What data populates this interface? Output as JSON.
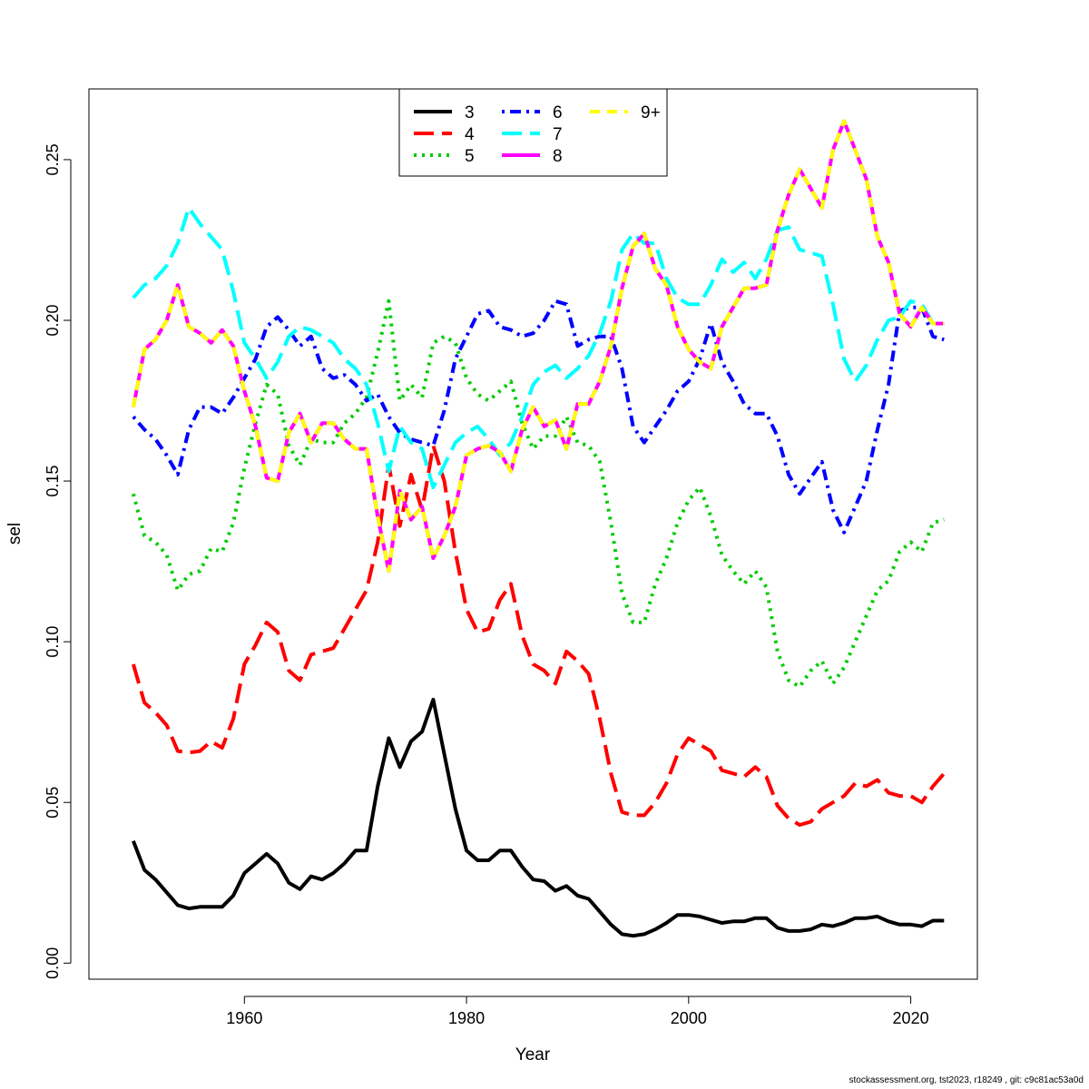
{
  "chart_data": {
    "type": "line",
    "xlabel": "Year",
    "ylabel": "sel",
    "xlim": [
      1946,
      2026
    ],
    "ylim": [
      -0.005,
      0.272
    ],
    "x_ticks": [
      1960,
      1980,
      2000,
      2020
    ],
    "y_ticks": [
      0.0,
      0.05,
      0.1,
      0.15,
      0.2,
      0.25
    ],
    "y_tick_labels": [
      "0.00",
      "0.05",
      "0.10",
      "0.15",
      "0.20",
      "0.25"
    ],
    "grid": false,
    "legend_position": "top-center",
    "x": [
      1950,
      1951,
      1952,
      1953,
      1954,
      1955,
      1956,
      1957,
      1958,
      1959,
      1960,
      1961,
      1962,
      1963,
      1964,
      1965,
      1966,
      1967,
      1968,
      1969,
      1970,
      1971,
      1972,
      1973,
      1974,
      1975,
      1976,
      1977,
      1978,
      1979,
      1980,
      1981,
      1982,
      1983,
      1984,
      1985,
      1986,
      1987,
      1988,
      1989,
      1990,
      1991,
      1992,
      1993,
      1994,
      1995,
      1996,
      1997,
      1998,
      1999,
      2000,
      2001,
      2002,
      2003,
      2004,
      2005,
      2006,
      2007,
      2008,
      2009,
      2010,
      2011,
      2012,
      2013,
      2014,
      2015,
      2016,
      2017,
      2018,
      2019,
      2020,
      2021,
      2022,
      2023
    ],
    "series": [
      {
        "name": "3",
        "color": "#000000",
        "dash": "solid",
        "values": [
          0.038,
          0.029,
          0.026,
          0.022,
          0.018,
          0.017,
          0.0175,
          0.0175,
          0.0175,
          0.021,
          0.028,
          0.031,
          0.034,
          0.031,
          0.025,
          0.023,
          0.027,
          0.026,
          0.028,
          0.031,
          0.035,
          0.035,
          0.055,
          0.07,
          0.061,
          0.069,
          0.072,
          0.082,
          0.065,
          0.048,
          0.035,
          0.032,
          0.032,
          0.035,
          0.035,
          0.03,
          0.026,
          0.0255,
          0.0225,
          0.024,
          0.021,
          0.02,
          0.016,
          0.012,
          0.009,
          0.0085,
          0.009,
          0.0105,
          0.0125,
          0.015,
          0.015,
          0.0145,
          0.0135,
          0.0125,
          0.013,
          0.013,
          0.014,
          0.014,
          0.011,
          0.01,
          0.01,
          0.0105,
          0.012,
          0.0115,
          0.0125,
          0.014,
          0.014,
          0.0145,
          0.013,
          0.012,
          0.012,
          0.0115,
          0.0132,
          0.0132
        ]
      },
      {
        "name": "4",
        "color": "#ff0000",
        "dash": "longdash",
        "values": [
          0.093,
          0.081,
          0.078,
          0.074,
          0.066,
          0.0655,
          0.066,
          0.069,
          0.067,
          0.076,
          0.093,
          0.099,
          0.106,
          0.103,
          0.091,
          0.088,
          0.096,
          0.097,
          0.098,
          0.104,
          0.11,
          0.116,
          0.131,
          0.155,
          0.136,
          0.152,
          0.141,
          0.161,
          0.15,
          0.128,
          0.11,
          0.103,
          0.104,
          0.113,
          0.118,
          0.102,
          0.093,
          0.091,
          0.087,
          0.097,
          0.094,
          0.09,
          0.076,
          0.059,
          0.047,
          0.046,
          0.046,
          0.05,
          0.056,
          0.065,
          0.07,
          0.068,
          0.066,
          0.06,
          0.059,
          0.058,
          0.061,
          0.058,
          0.049,
          0.045,
          0.043,
          0.044,
          0.048,
          0.05,
          0.052,
          0.056,
          0.055,
          0.057,
          0.053,
          0.052,
          0.052,
          0.05,
          0.055,
          0.059
        ]
      },
      {
        "name": "5",
        "color": "#00cd00",
        "dash": "dotted",
        "values": [
          0.146,
          0.133,
          0.131,
          0.127,
          0.116,
          0.121,
          0.122,
          0.129,
          0.128,
          0.137,
          0.154,
          0.168,
          0.18,
          0.177,
          0.161,
          0.155,
          0.163,
          0.162,
          0.162,
          0.168,
          0.171,
          0.176,
          0.19,
          0.206,
          0.175,
          0.18,
          0.176,
          0.193,
          0.195,
          0.193,
          0.182,
          0.177,
          0.175,
          0.178,
          0.181,
          0.168,
          0.16,
          0.164,
          0.164,
          0.17,
          0.162,
          0.161,
          0.156,
          0.137,
          0.115,
          0.106,
          0.106,
          0.118,
          0.126,
          0.137,
          0.144,
          0.148,
          0.139,
          0.127,
          0.122,
          0.118,
          0.122,
          0.117,
          0.097,
          0.088,
          0.086,
          0.091,
          0.094,
          0.087,
          0.092,
          0.1,
          0.108,
          0.116,
          0.119,
          0.128,
          0.131,
          0.128,
          0.137,
          0.138
        ]
      },
      {
        "name": "6",
        "color": "#0000ff",
        "dash": "dotdash",
        "values": [
          0.17,
          0.166,
          0.163,
          0.158,
          0.152,
          0.166,
          0.173,
          0.173,
          0.171,
          0.176,
          0.182,
          0.188,
          0.198,
          0.201,
          0.197,
          0.192,
          0.195,
          0.185,
          0.182,
          0.183,
          0.18,
          0.175,
          0.177,
          0.17,
          0.165,
          0.163,
          0.162,
          0.161,
          0.172,
          0.188,
          0.195,
          0.202,
          0.203,
          0.198,
          0.197,
          0.195,
          0.196,
          0.2,
          0.206,
          0.205,
          0.192,
          0.194,
          0.195,
          0.195,
          0.185,
          0.167,
          0.162,
          0.167,
          0.172,
          0.178,
          0.181,
          0.188,
          0.199,
          0.187,
          0.181,
          0.174,
          0.171,
          0.171,
          0.164,
          0.152,
          0.146,
          0.151,
          0.156,
          0.141,
          0.134,
          0.142,
          0.15,
          0.166,
          0.18,
          0.203,
          0.204,
          0.204,
          0.195,
          0.194
        ]
      },
      {
        "name": "7",
        "color": "#00ffff",
        "dash": "longdash",
        "values": [
          0.207,
          0.211,
          0.213,
          0.217,
          0.224,
          0.235,
          0.23,
          0.226,
          0.222,
          0.209,
          0.193,
          0.188,
          0.182,
          0.187,
          0.195,
          0.198,
          0.197,
          0.195,
          0.193,
          0.188,
          0.185,
          0.18,
          0.168,
          0.153,
          0.167,
          0.162,
          0.16,
          0.148,
          0.155,
          0.162,
          0.165,
          0.167,
          0.163,
          0.158,
          0.162,
          0.17,
          0.18,
          0.184,
          0.186,
          0.182,
          0.185,
          0.189,
          0.196,
          0.206,
          0.222,
          0.227,
          0.224,
          0.224,
          0.213,
          0.207,
          0.205,
          0.205,
          0.211,
          0.219,
          0.215,
          0.218,
          0.213,
          0.219,
          0.228,
          0.229,
          0.222,
          0.221,
          0.22,
          0.205,
          0.188,
          0.181,
          0.186,
          0.194,
          0.2,
          0.201,
          0.206,
          0.205,
          0.199,
          0.199
        ]
      },
      {
        "name": "8",
        "color": "#ff00ff",
        "dash": "solid",
        "values": [
          0.173,
          0.191,
          0.194,
          0.2,
          0.211,
          0.198,
          0.196,
          0.193,
          0.197,
          0.192,
          0.178,
          0.167,
          0.151,
          0.15,
          0.165,
          0.171,
          0.162,
          0.168,
          0.168,
          0.163,
          0.16,
          0.16,
          0.139,
          0.122,
          0.147,
          0.138,
          0.142,
          0.126,
          0.133,
          0.142,
          0.158,
          0.16,
          0.161,
          0.159,
          0.153,
          0.166,
          0.173,
          0.167,
          0.169,
          0.16,
          0.174,
          0.174,
          0.181,
          0.192,
          0.21,
          0.223,
          0.227,
          0.216,
          0.211,
          0.198,
          0.191,
          0.187,
          0.185,
          0.198,
          0.204,
          0.21,
          0.21,
          0.211,
          0.228,
          0.239,
          0.247,
          0.241,
          0.235,
          0.253,
          0.262,
          0.253,
          0.244,
          0.226,
          0.218,
          0.202,
          0.198,
          0.204,
          0.199,
          0.199
        ]
      },
      {
        "name": "9+",
        "color": "#ffff00",
        "dash": "dashed",
        "values": [
          0.173,
          0.191,
          0.194,
          0.2,
          0.211,
          0.198,
          0.196,
          0.193,
          0.197,
          0.192,
          0.178,
          0.167,
          0.151,
          0.15,
          0.165,
          0.171,
          0.162,
          0.168,
          0.168,
          0.163,
          0.16,
          0.16,
          0.139,
          0.122,
          0.147,
          0.138,
          0.142,
          0.126,
          0.133,
          0.142,
          0.158,
          0.16,
          0.161,
          0.159,
          0.153,
          0.166,
          0.173,
          0.167,
          0.169,
          0.16,
          0.174,
          0.174,
          0.181,
          0.192,
          0.21,
          0.223,
          0.227,
          0.216,
          0.211,
          0.198,
          0.191,
          0.187,
          0.185,
          0.198,
          0.204,
          0.21,
          0.21,
          0.211,
          0.228,
          0.239,
          0.247,
          0.241,
          0.235,
          0.253,
          0.262,
          0.253,
          0.244,
          0.226,
          0.218,
          0.202,
          0.198,
          0.204,
          0.199,
          0.199
        ]
      }
    ]
  },
  "footer": {
    "text": "stockassessment.org, tst2023, r18249 , git: c9c81ac53a0d"
  }
}
